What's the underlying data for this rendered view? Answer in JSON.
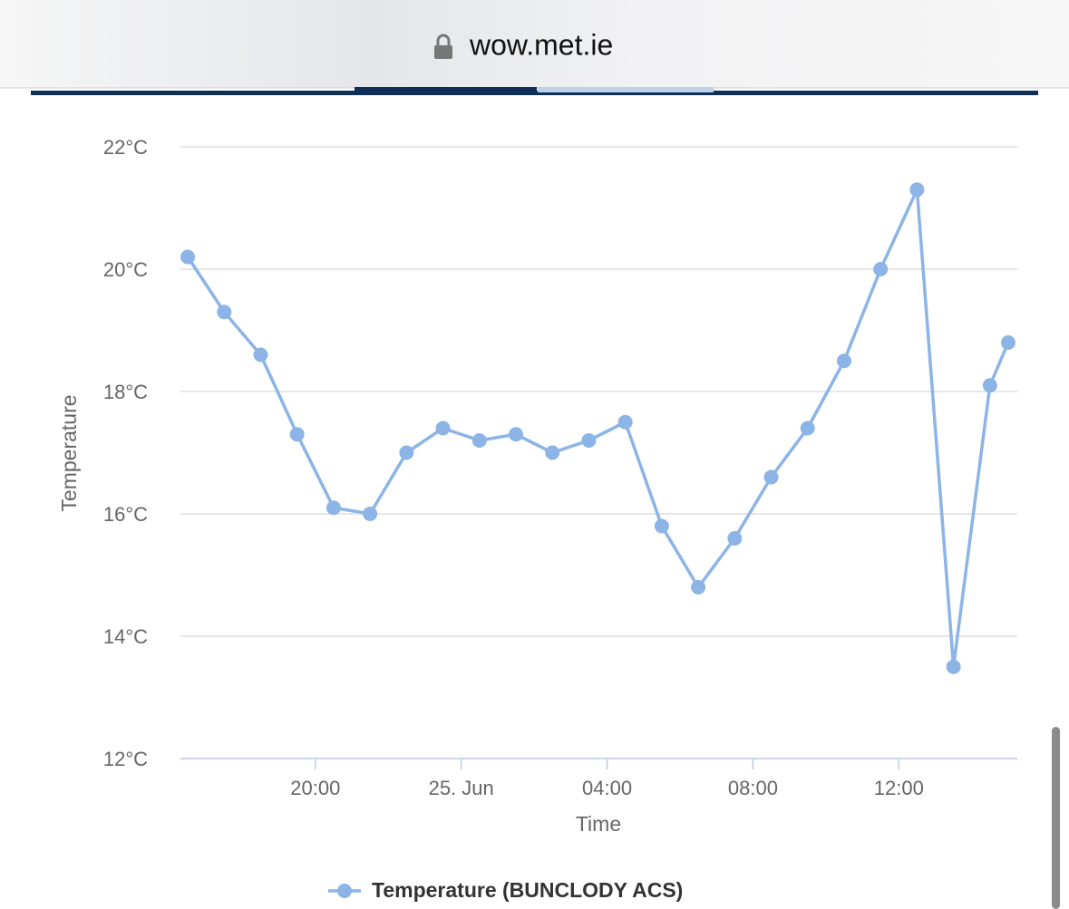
{
  "browser": {
    "url": "wow.met.ie"
  },
  "chart_data": {
    "type": "line",
    "x_label": "Time",
    "y_label": "Temperature",
    "x": [
      16.5,
      17.5,
      18.5,
      19.5,
      20.5,
      21.5,
      22.5,
      23.5,
      24.5,
      25.5,
      26.5,
      27.5,
      28.5,
      29.5,
      30.5,
      31.5,
      32.5,
      33.5,
      34.5,
      35.5,
      36.5,
      37.5,
      38.5,
      39
    ],
    "series": [
      {
        "name": "Temperature (BUNCLODY ACS)",
        "color": "#8cb4e6",
        "values": [
          20.2,
          19.3,
          18.6,
          17.3,
          16.1,
          16.0,
          17.0,
          17.4,
          17.2,
          17.3,
          17.0,
          17.2,
          17.5,
          15.8,
          14.8,
          15.6,
          16.6,
          17.4,
          18.5,
          20.0,
          21.3,
          13.5,
          18.1,
          18.8
        ]
      }
    ],
    "xlim": [
      16.3,
      39.25
    ],
    "xticks": [
      {
        "value": 20,
        "label": "20:00"
      },
      {
        "value": 24,
        "label": "25. Jun"
      },
      {
        "value": 28,
        "label": "04:00"
      },
      {
        "value": 32,
        "label": "08:00"
      },
      {
        "value": 36,
        "label": "12:00"
      }
    ],
    "ylim": [
      12,
      22
    ],
    "yticks": [
      {
        "value": 12,
        "label": "12°C"
      },
      {
        "value": 14,
        "label": "14°C"
      },
      {
        "value": 16,
        "label": "16°C"
      },
      {
        "value": 18,
        "label": "18°C"
      },
      {
        "value": 20,
        "label": "20°C"
      },
      {
        "value": 22,
        "label": "22°C"
      }
    ],
    "grid": true
  }
}
